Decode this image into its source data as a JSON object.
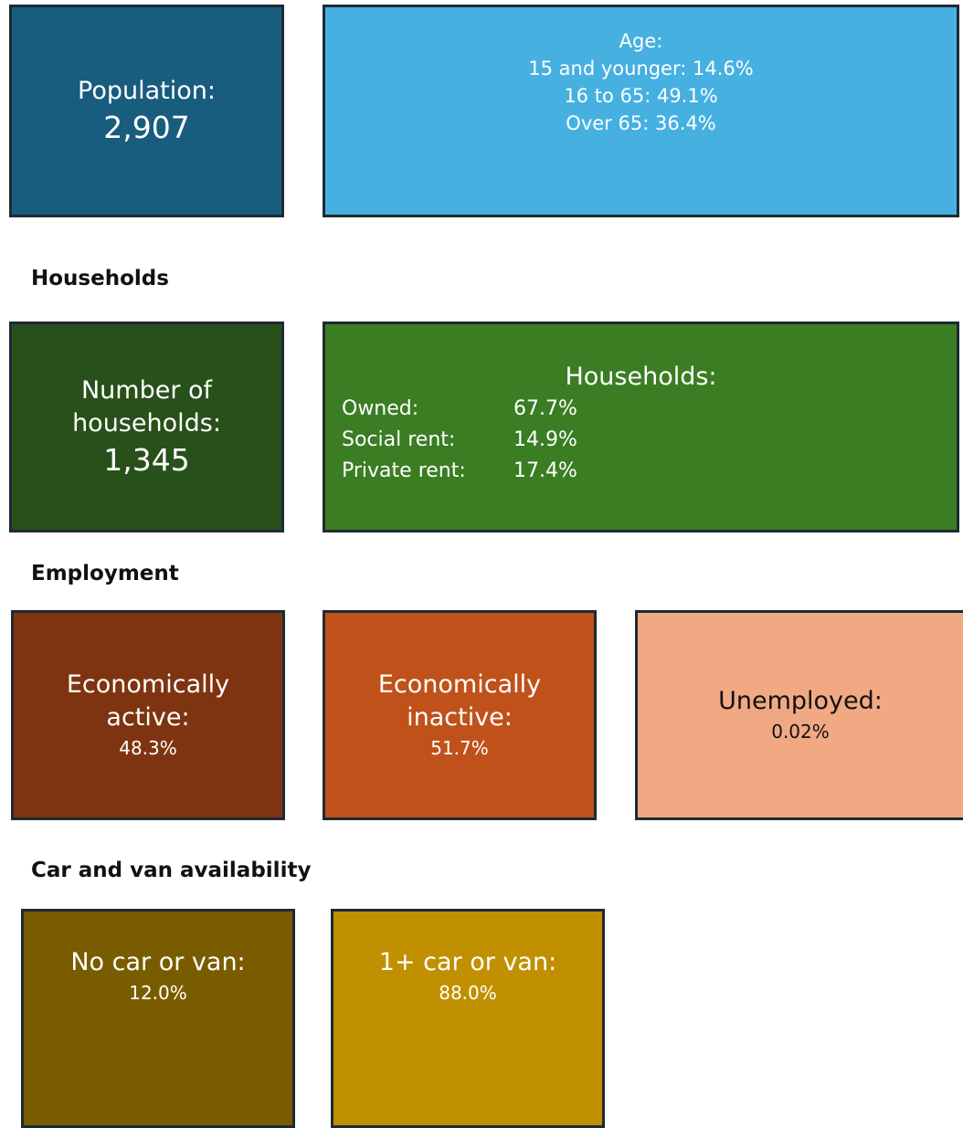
{
  "demographics": {
    "population": {
      "label": "Population:",
      "value": "2,907"
    },
    "age": {
      "title": "Age:",
      "lines": [
        {
          "label": "15 and younger:",
          "value": "14.6%"
        },
        {
          "label": "16 to 65:",
          "value": "49.1%"
        },
        {
          "label": "Over 65:",
          "value": "36.4%"
        }
      ]
    }
  },
  "households": {
    "heading": "Households",
    "count": {
      "label_lines": [
        "Number of",
        "households:"
      ],
      "value": "1,345"
    },
    "tenure": {
      "title": "Households:",
      "rows": [
        {
          "label": "Owned:",
          "value": "67.7%"
        },
        {
          "label": "Social rent:",
          "value": "14.9%"
        },
        {
          "label": "Private rent:",
          "value": "17.4%"
        }
      ]
    }
  },
  "employment": {
    "heading": "Employment",
    "boxes": [
      {
        "label_lines": [
          "Economically",
          "active:"
        ],
        "value": "48.3%"
      },
      {
        "label_lines": [
          "Economically",
          "inactive:"
        ],
        "value": "51.7%"
      },
      {
        "label_lines": [
          "Unemployed:"
        ],
        "value": "0.02%"
      }
    ]
  },
  "cars": {
    "heading": "Car and van availability",
    "boxes": [
      {
        "label_lines": [
          "No car or van:"
        ],
        "value": "12.0%"
      },
      {
        "label_lines": [
          "1+ car or van:"
        ],
        "value": "88.0%"
      }
    ]
  }
}
